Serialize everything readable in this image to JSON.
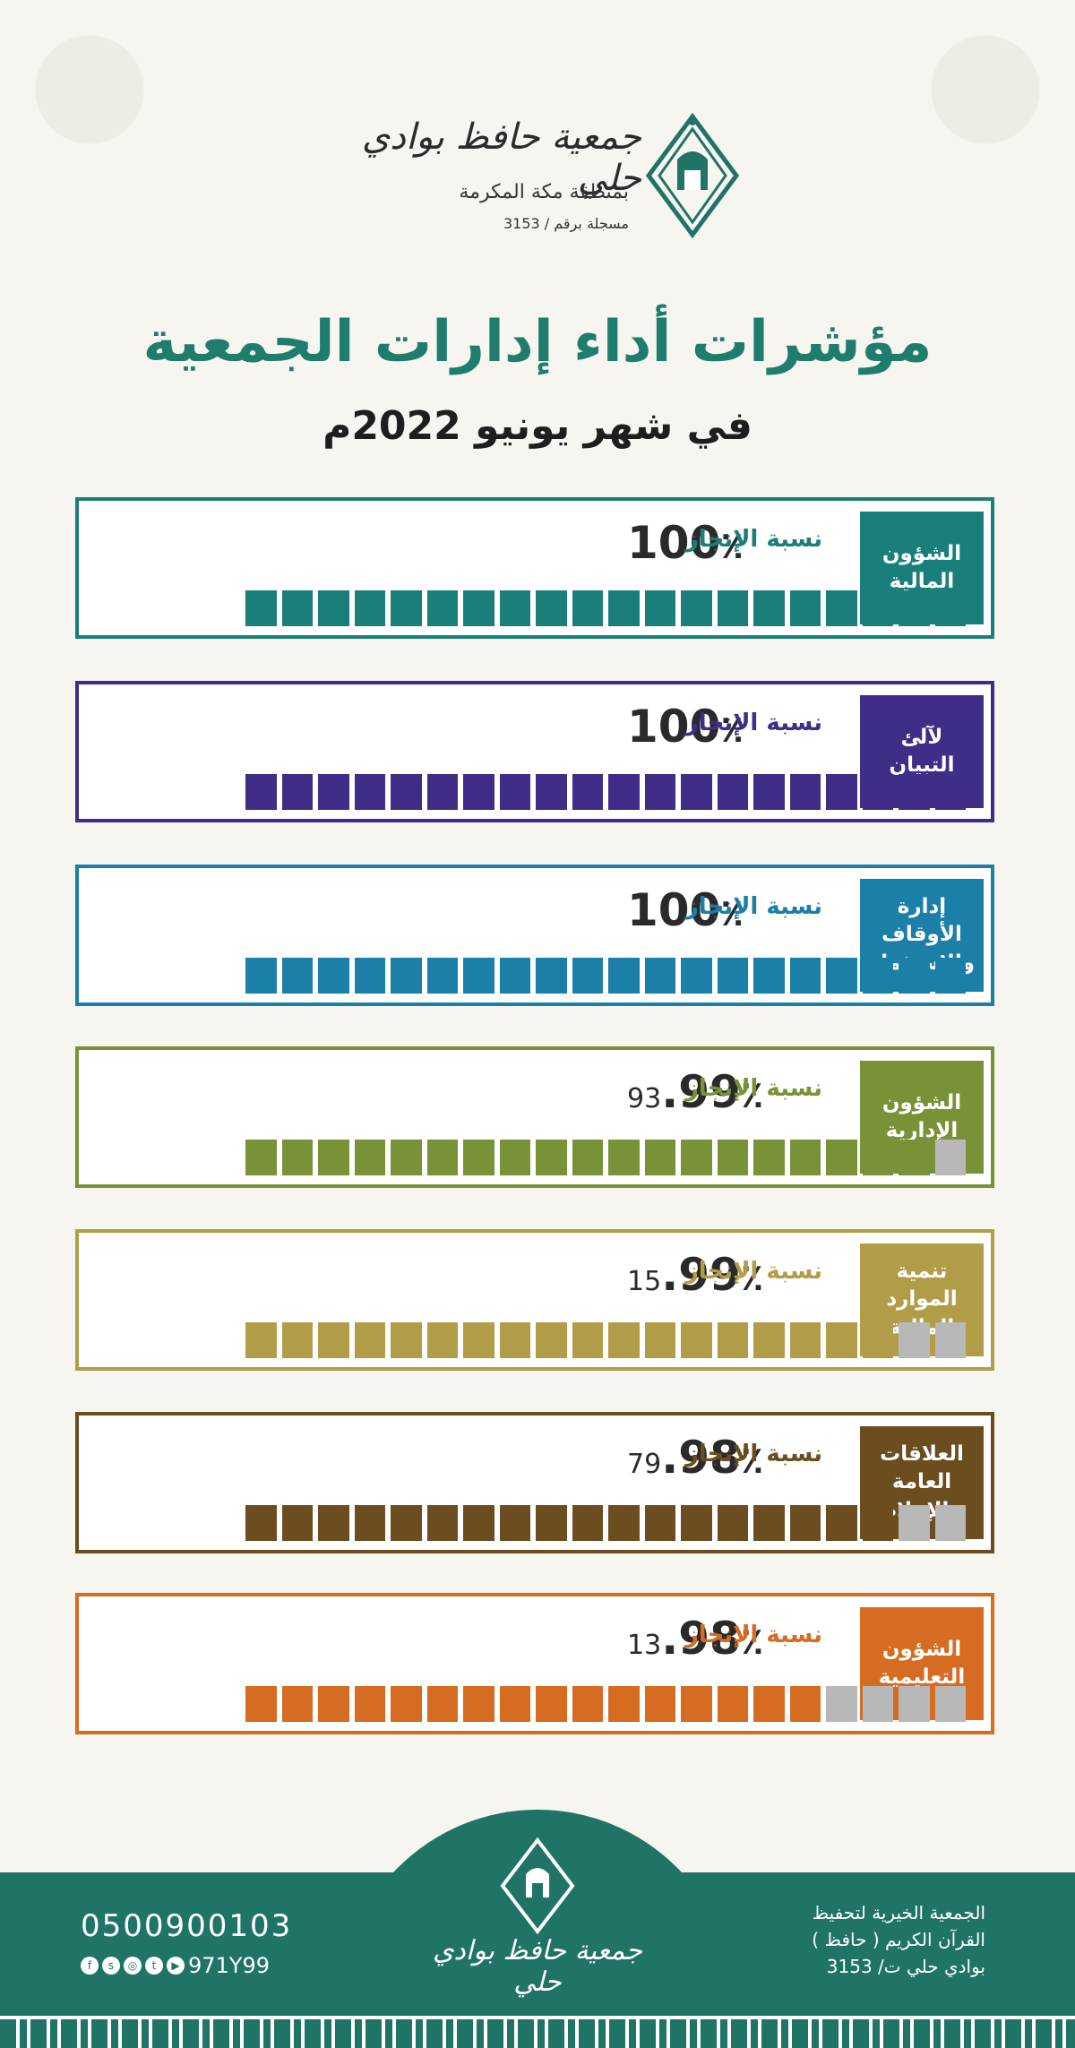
{
  "header": {
    "brand_name": "جمعية حافظ بوادي حلي",
    "region": "بمنطقة مكة المكرمة",
    "registration": "مسجلة برقم / 3153"
  },
  "title": "مؤشرات أداء إدارات الجمعية",
  "subtitle": "في شهر يونيو 2022م",
  "achievement_label": "نسبة الإنجاز",
  "cards": [
    {
      "dept": "الشؤون\nالمالية",
      "pct_int": "100",
      "pct_frac": "",
      "value": 100,
      "color": "#1a7f7a"
    },
    {
      "dept": "لآلئ\nالتبيان",
      "pct_int": "100",
      "pct_frac": "",
      "value": 100,
      "color": "#3f2d87"
    },
    {
      "dept": "إدارة\nالأوقاف\nوالاستثمار",
      "pct_int": "100",
      "pct_frac": "",
      "value": 100,
      "color": "#1b7fa8"
    },
    {
      "dept": "الشؤون\nالإدارية",
      "pct_int": "99",
      "pct_frac": "93",
      "value": 99.93,
      "color": "#7a9237"
    },
    {
      "dept": "تنمية\nالموارد\nالمالية",
      "pct_int": "99",
      "pct_frac": "15",
      "value": 99.15,
      "color": "#b19d48"
    },
    {
      "dept": "العلاقات\nالعامة\nوالإعلام",
      "pct_int": "98",
      "pct_frac": "79",
      "value": 98.79,
      "color": "#6b4d20"
    },
    {
      "dept": "الشؤون\nالتعليمية",
      "pct_int": "98",
      "pct_frac": "13",
      "value": 98.13,
      "color": "#d66b22"
    }
  ],
  "footer": {
    "name": "جمعية حافظ بوادي حلي",
    "line1": "الجمعية الخيرية لتحفيظ",
    "line2": "القرآن الكريم ( حافظ )",
    "line3": "بوادي حلي ت/ 3153",
    "phone": "0500900103",
    "handle": "971Y99"
  },
  "colors": {
    "brand": "#1f7466",
    "empty_segment": "#b8b8b8"
  }
}
